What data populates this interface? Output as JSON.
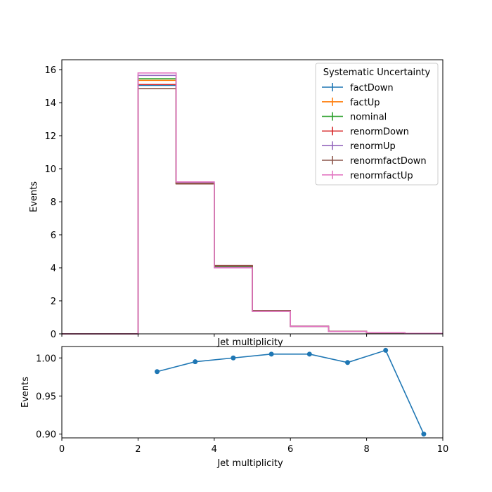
{
  "chart_data": [
    {
      "type": "line",
      "subtype": "step-histogram",
      "xlabel": "Jet multiplicity",
      "ylabel": "Events",
      "xlim": [
        0,
        10
      ],
      "ylim": [
        0,
        16.6
      ],
      "yticks": [
        0,
        2,
        4,
        6,
        8,
        10,
        12,
        14,
        16
      ],
      "grid": false,
      "legend_title": "Systematic Uncertainty",
      "legend_position": "top-right",
      "bin_edges": [
        0,
        1,
        2,
        3,
        4,
        5,
        6,
        7,
        8,
        9,
        10
      ],
      "series": [
        {
          "name": "factDown",
          "color": "#1f77b4",
          "values": [
            0,
            0,
            15.05,
            9.15,
            4.1,
            1.4,
            0.46,
            0.15,
            0.07,
            0.03
          ]
        },
        {
          "name": "factUp",
          "color": "#ff7f0e",
          "values": [
            0,
            0,
            15.35,
            9.1,
            4.05,
            1.38,
            0.45,
            0.14,
            0.07,
            0.03
          ]
        },
        {
          "name": "nominal",
          "color": "#2ca02c",
          "values": [
            0,
            0,
            15.45,
            9.12,
            4.08,
            1.39,
            0.45,
            0.15,
            0.07,
            0.03
          ]
        },
        {
          "name": "renormDown",
          "color": "#d62728",
          "values": [
            0,
            0,
            15.1,
            9.1,
            4.12,
            1.4,
            0.46,
            0.15,
            0.07,
            0.03
          ]
        },
        {
          "name": "renormUp",
          "color": "#9467bd",
          "values": [
            0,
            0,
            15.65,
            9.18,
            4.02,
            1.37,
            0.45,
            0.14,
            0.07,
            0.03
          ]
        },
        {
          "name": "renormfactDown",
          "color": "#8c564b",
          "values": [
            0,
            0,
            14.85,
            9.08,
            4.14,
            1.41,
            0.46,
            0.15,
            0.07,
            0.03
          ]
        },
        {
          "name": "renormfactUp",
          "color": "#e377c2",
          "values": [
            0,
            0,
            15.8,
            9.2,
            4.0,
            1.36,
            0.45,
            0.14,
            0.07,
            0.03
          ]
        }
      ]
    },
    {
      "type": "line",
      "xlabel": "Jet multiplicity",
      "ylabel": "Events",
      "xlim": [
        0,
        10
      ],
      "ylim": [
        0.895,
        1.015
      ],
      "xticks": [
        0,
        2,
        4,
        6,
        8,
        10
      ],
      "yticks": [
        0.9,
        0.95,
        1.0
      ],
      "ytick_labels": [
        "0.90",
        "0.95",
        "1.00"
      ],
      "grid": false,
      "color": "#1f77b4",
      "x": [
        2.5,
        3.5,
        4.5,
        5.5,
        6.5,
        7.5,
        8.5,
        9.5
      ],
      "y": [
        0.982,
        0.995,
        1.0,
        1.005,
        1.005,
        0.994,
        1.01,
        0.9
      ]
    }
  ]
}
